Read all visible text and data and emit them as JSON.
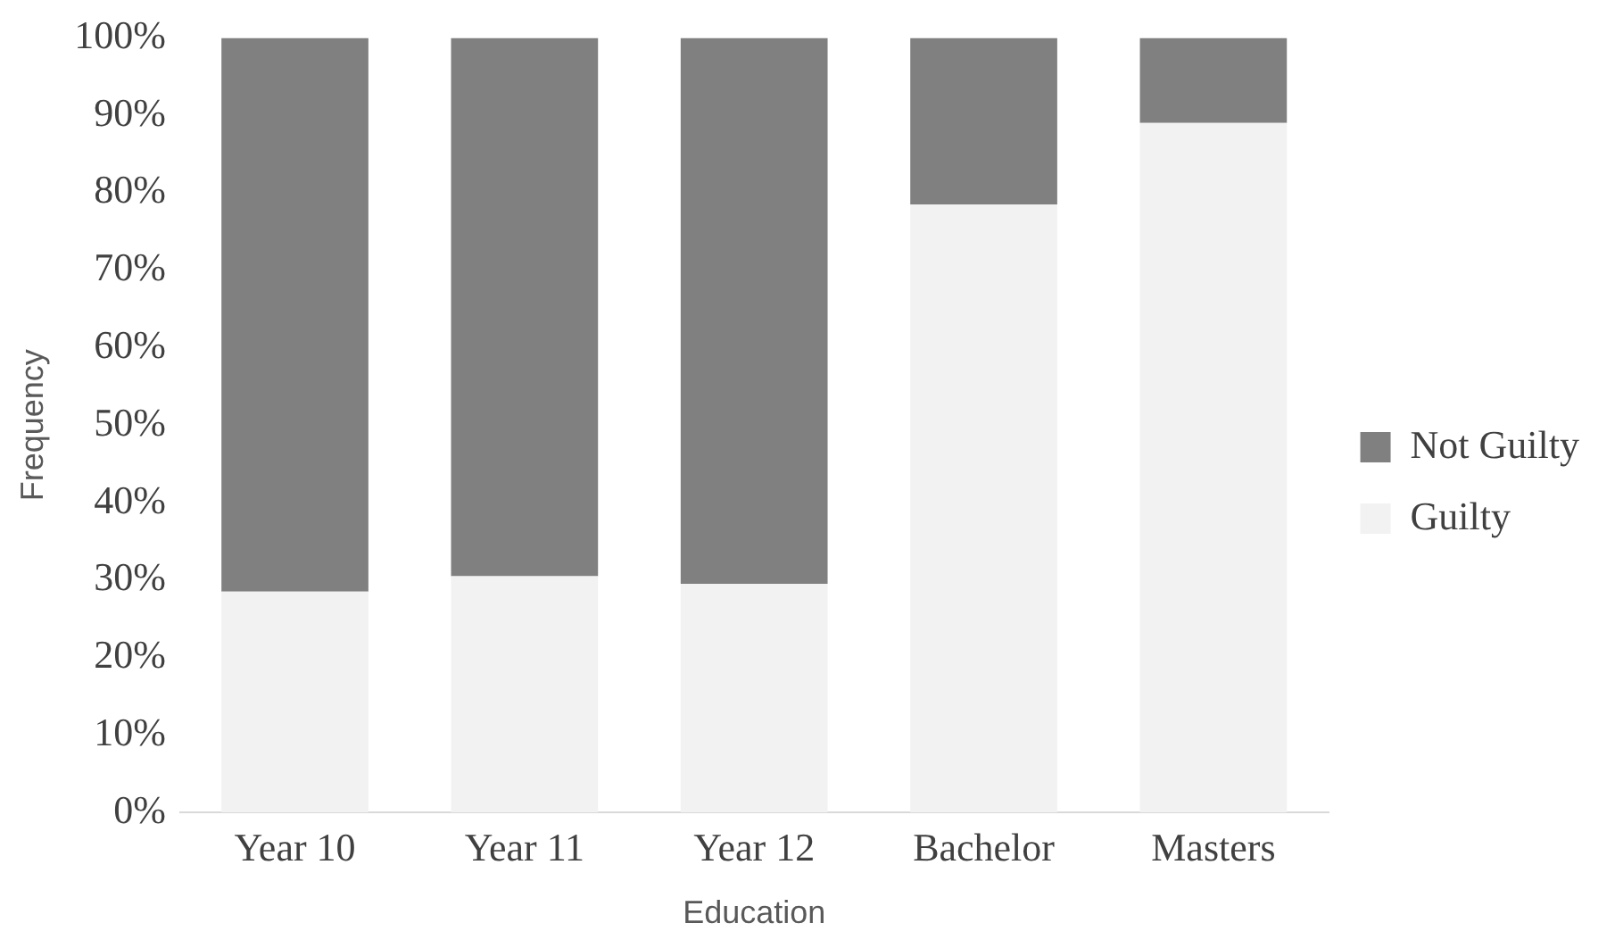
{
  "chart_data": {
    "type": "bar",
    "stacked": true,
    "xlabel": "Education",
    "ylabel": "Frequency",
    "categories": [
      "Year 10",
      "Year 11",
      "Year 12",
      "Bachelor",
      "Masters"
    ],
    "series": [
      {
        "name": "Guilty",
        "color": "#f2f2f2",
        "values": [
          28.5,
          30.5,
          29.5,
          78.5,
          89
        ]
      },
      {
        "name": "Not Guilty",
        "color": "#808080",
        "values": [
          71.5,
          69.5,
          70.5,
          21.5,
          11
        ]
      }
    ],
    "ylim": [
      0,
      100
    ],
    "yticks": [
      {
        "value": 0,
        "label": "0%"
      },
      {
        "value": 10,
        "label": "10%"
      },
      {
        "value": 20,
        "label": "20%"
      },
      {
        "value": 30,
        "label": "30%"
      },
      {
        "value": 40,
        "label": "40%"
      },
      {
        "value": 50,
        "label": "50%"
      },
      {
        "value": 60,
        "label": "60%"
      },
      {
        "value": 70,
        "label": "70%"
      },
      {
        "value": 80,
        "label": "80%"
      },
      {
        "value": 90,
        "label": "90%"
      },
      {
        "value": 100,
        "label": "100%"
      }
    ],
    "legend": "right",
    "grid": false
  }
}
